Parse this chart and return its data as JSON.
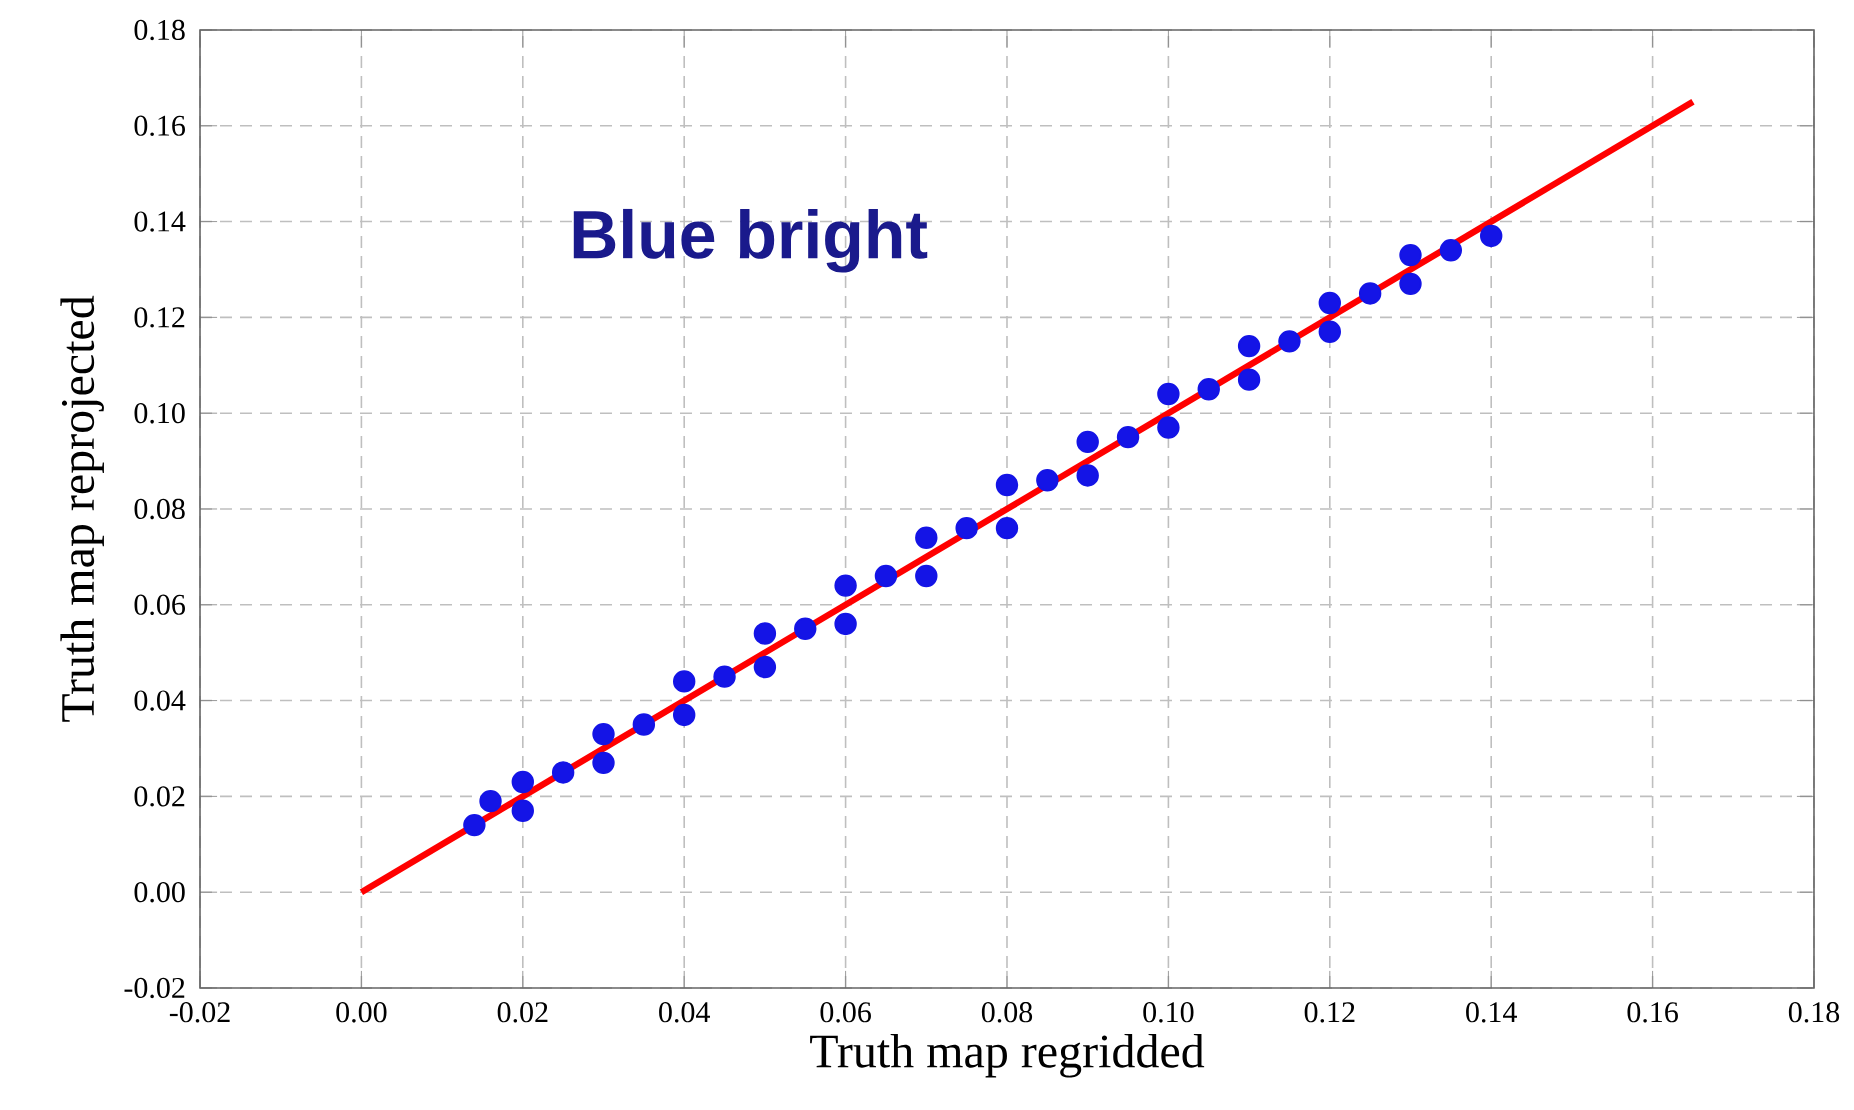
{
  "chart_data": {
    "type": "scatter",
    "xlabel": "Truth map regridded",
    "ylabel": "Truth map reprojected",
    "annotations": [
      "Blue bright"
    ],
    "xlim": [
      -0.02,
      0.18
    ],
    "ylim": [
      -0.02,
      0.18
    ],
    "xticks": [
      {
        "value": -0.02,
        "label": "-0.02"
      },
      {
        "value": 0,
        "label": "0.00"
      },
      {
        "value": 0.02,
        "label": "0.02"
      },
      {
        "value": 0.04,
        "label": "0.04"
      },
      {
        "value": 0.06,
        "label": "0.06"
      },
      {
        "value": 0.08,
        "label": "0.08"
      },
      {
        "value": 0.1,
        "label": "0.10"
      },
      {
        "value": 0.12,
        "label": "0.12"
      },
      {
        "value": 0.14,
        "label": "0.14"
      },
      {
        "value": 0.16,
        "label": "0.16"
      },
      {
        "value": 0.18,
        "label": "0.18"
      }
    ],
    "yticks": [
      {
        "value": -0.02,
        "label": "-0.02"
      },
      {
        "value": 0,
        "label": "0.00"
      },
      {
        "value": 0.02,
        "label": "0.02"
      },
      {
        "value": 0.04,
        "label": "0.04"
      },
      {
        "value": 0.06,
        "label": "0.06"
      },
      {
        "value": 0.08,
        "label": "0.08"
      },
      {
        "value": 0.1,
        "label": "0.10"
      },
      {
        "value": 0.12,
        "label": "0.12"
      },
      {
        "value": 0.14,
        "label": "0.14"
      },
      {
        "value": 0.16,
        "label": "0.16"
      },
      {
        "value": 0.18,
        "label": "0.18"
      }
    ],
    "grid": true,
    "series": [
      {
        "color": "#1414e6",
        "marker": "circle",
        "x": [
          0.014,
          0.016,
          0.02,
          0.02,
          0.025,
          0.03,
          0.03,
          0.035,
          0.04,
          0.04,
          0.045,
          0.05,
          0.05,
          0.055,
          0.06,
          0.06,
          0.065,
          0.07,
          0.07,
          0.075,
          0.08,
          0.08,
          0.085,
          0.09,
          0.09,
          0.095,
          0.1,
          0.1,
          0.105,
          0.11,
          0.11,
          0.115,
          0.12,
          0.12,
          0.125,
          0.13,
          0.13,
          0.135,
          0.14
        ],
        "values": [
          0.014,
          0.019,
          0.023,
          0.017,
          0.025,
          0.033,
          0.027,
          0.035,
          0.044,
          0.037,
          0.045,
          0.054,
          0.047,
          0.055,
          0.064,
          0.056,
          0.066,
          0.074,
          0.066,
          0.076,
          0.085,
          0.076,
          0.086,
          0.094,
          0.087,
          0.095,
          0.104,
          0.097,
          0.105,
          0.114,
          0.107,
          0.115,
          0.123,
          0.117,
          0.125,
          0.133,
          0.127,
          0.134,
          0.137
        ]
      },
      {
        "type": "line",
        "color": "#ff0000",
        "marker": "none",
        "x": [
          0,
          0.165
        ],
        "values": [
          0,
          0.165
        ]
      }
    ]
  }
}
